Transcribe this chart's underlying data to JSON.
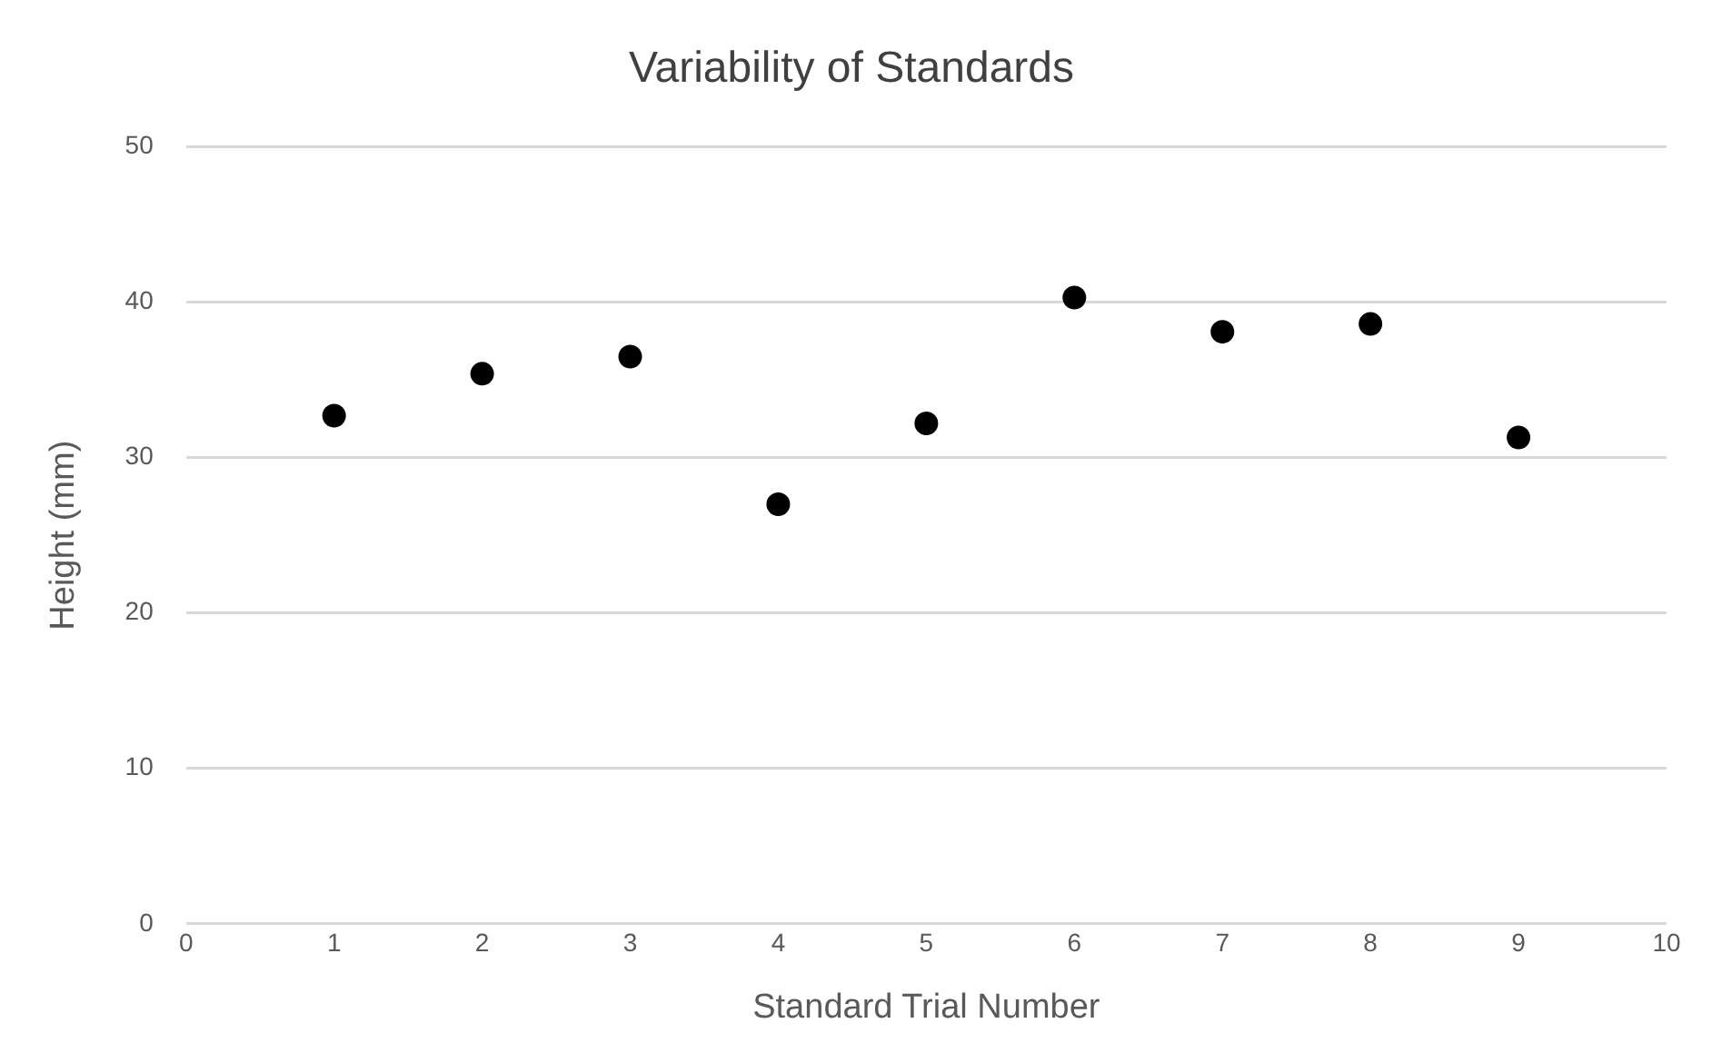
{
  "chart_data": {
    "type": "scatter",
    "title": "Variability of Standards",
    "xlabel": "Standard Trial Number",
    "ylabel": "Height (mm)",
    "x": [
      1,
      2,
      3,
      4,
      5,
      6,
      7,
      8,
      9
    ],
    "series": [
      {
        "color": "#000000",
        "values": [
          32.7,
          35.4,
          36.5,
          27.0,
          32.2,
          40.3,
          38.1,
          38.6,
          31.3
        ]
      }
    ],
    "xlim": [
      0,
      10
    ],
    "xticks": [
      0,
      1,
      2,
      3,
      4,
      5,
      6,
      7,
      8,
      9,
      10
    ],
    "ylim": [
      0,
      50
    ],
    "yticks": [
      0,
      10,
      20,
      30,
      40,
      50
    ],
    "grid": "y",
    "legend": false,
    "marker": "circle"
  }
}
